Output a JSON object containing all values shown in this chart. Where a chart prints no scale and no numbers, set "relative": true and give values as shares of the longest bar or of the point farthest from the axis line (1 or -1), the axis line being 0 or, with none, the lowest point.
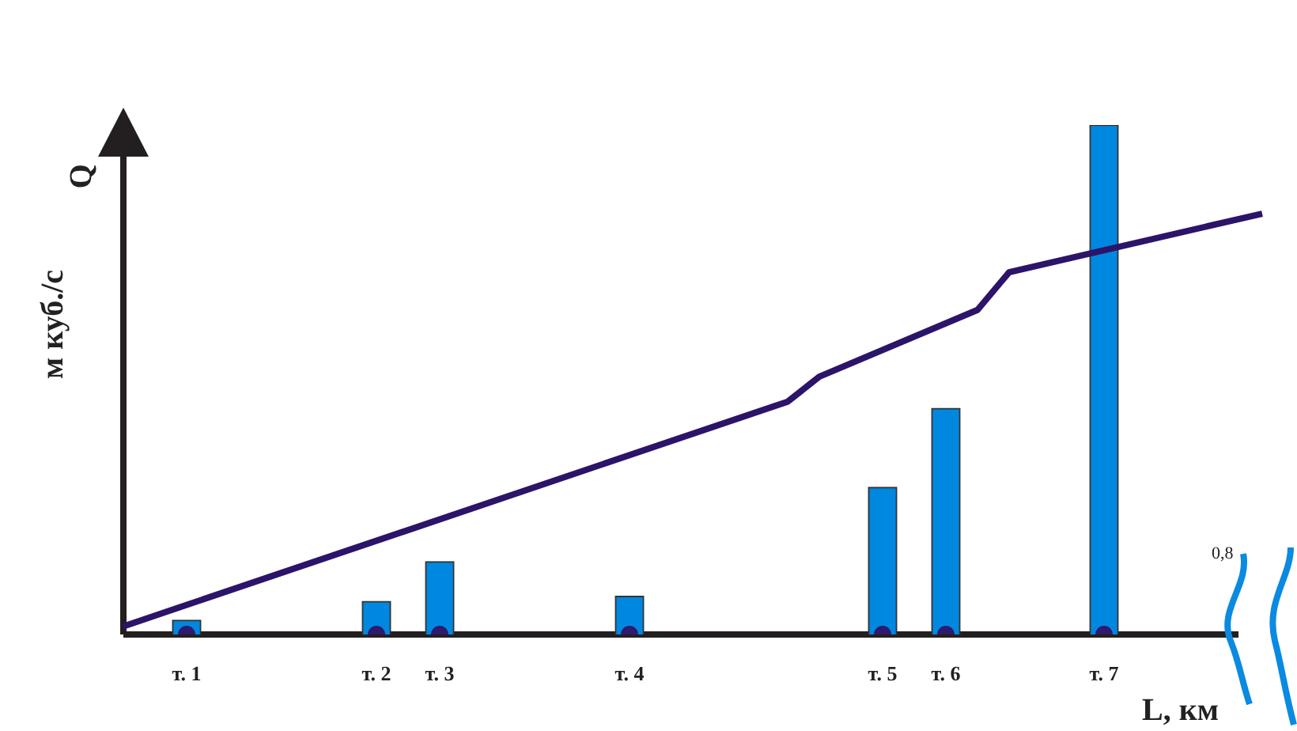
{
  "chart_data": {
    "type": "bar",
    "relative": true,
    "xlabel": "L, км",
    "ylabel": "м куб./с",
    "annotations": [
      "Q",
      "0,8"
    ],
    "categories": [
      null,
      null,
      "т. 1",
      null,
      null,
      null,
      null,
      null,
      "т. 2",
      null,
      "т. 3",
      null,
      null,
      null,
      null,
      null,
      "т. 4",
      null,
      null,
      null,
      null,
      null,
      null,
      null,
      "т. 5",
      null,
      "т. 6",
      null,
      null,
      null,
      null,
      "т. 7",
      null,
      null,
      null,
      null,
      null
    ],
    "series": [
      {
        "color": "#0088e0",
        "values": [
          null,
          null,
          0.028,
          null,
          null,
          null,
          null,
          null,
          0.065,
          null,
          0.143,
          null,
          null,
          null,
          null,
          null,
          0.075,
          null,
          null,
          null,
          null,
          null,
          null,
          null,
          0.289,
          null,
          0.444,
          null,
          null,
          null,
          null,
          1,
          null,
          null,
          null,
          null,
          null
        ]
      },
      {
        "type": "line",
        "color": "#2b1469",
        "values": [
          0.016,
          null,
          null,
          null,
          null,
          null,
          null,
          null,
          null,
          null,
          null,
          null,
          null,
          null,
          null,
          null,
          null,
          null,
          null,
          null,
          null,
          0.457,
          0.506,
          null,
          null,
          null,
          null,
          0.637,
          0.711,
          null,
          null,
          null,
          null,
          null,
          null,
          null,
          0.826
        ],
        "marker": "none"
      },
      {
        "type": "scatter",
        "color": "#2e1a6e",
        "x": [
          "т. 1",
          "т. 2",
          "т. 3",
          "т. 4",
          "т. 5",
          "т. 6",
          "т. 7"
        ],
        "values": [
          0,
          0,
          0,
          0,
          0,
          0,
          0
        ],
        "marker": "circle"
      }
    ],
    "legend": false
  }
}
